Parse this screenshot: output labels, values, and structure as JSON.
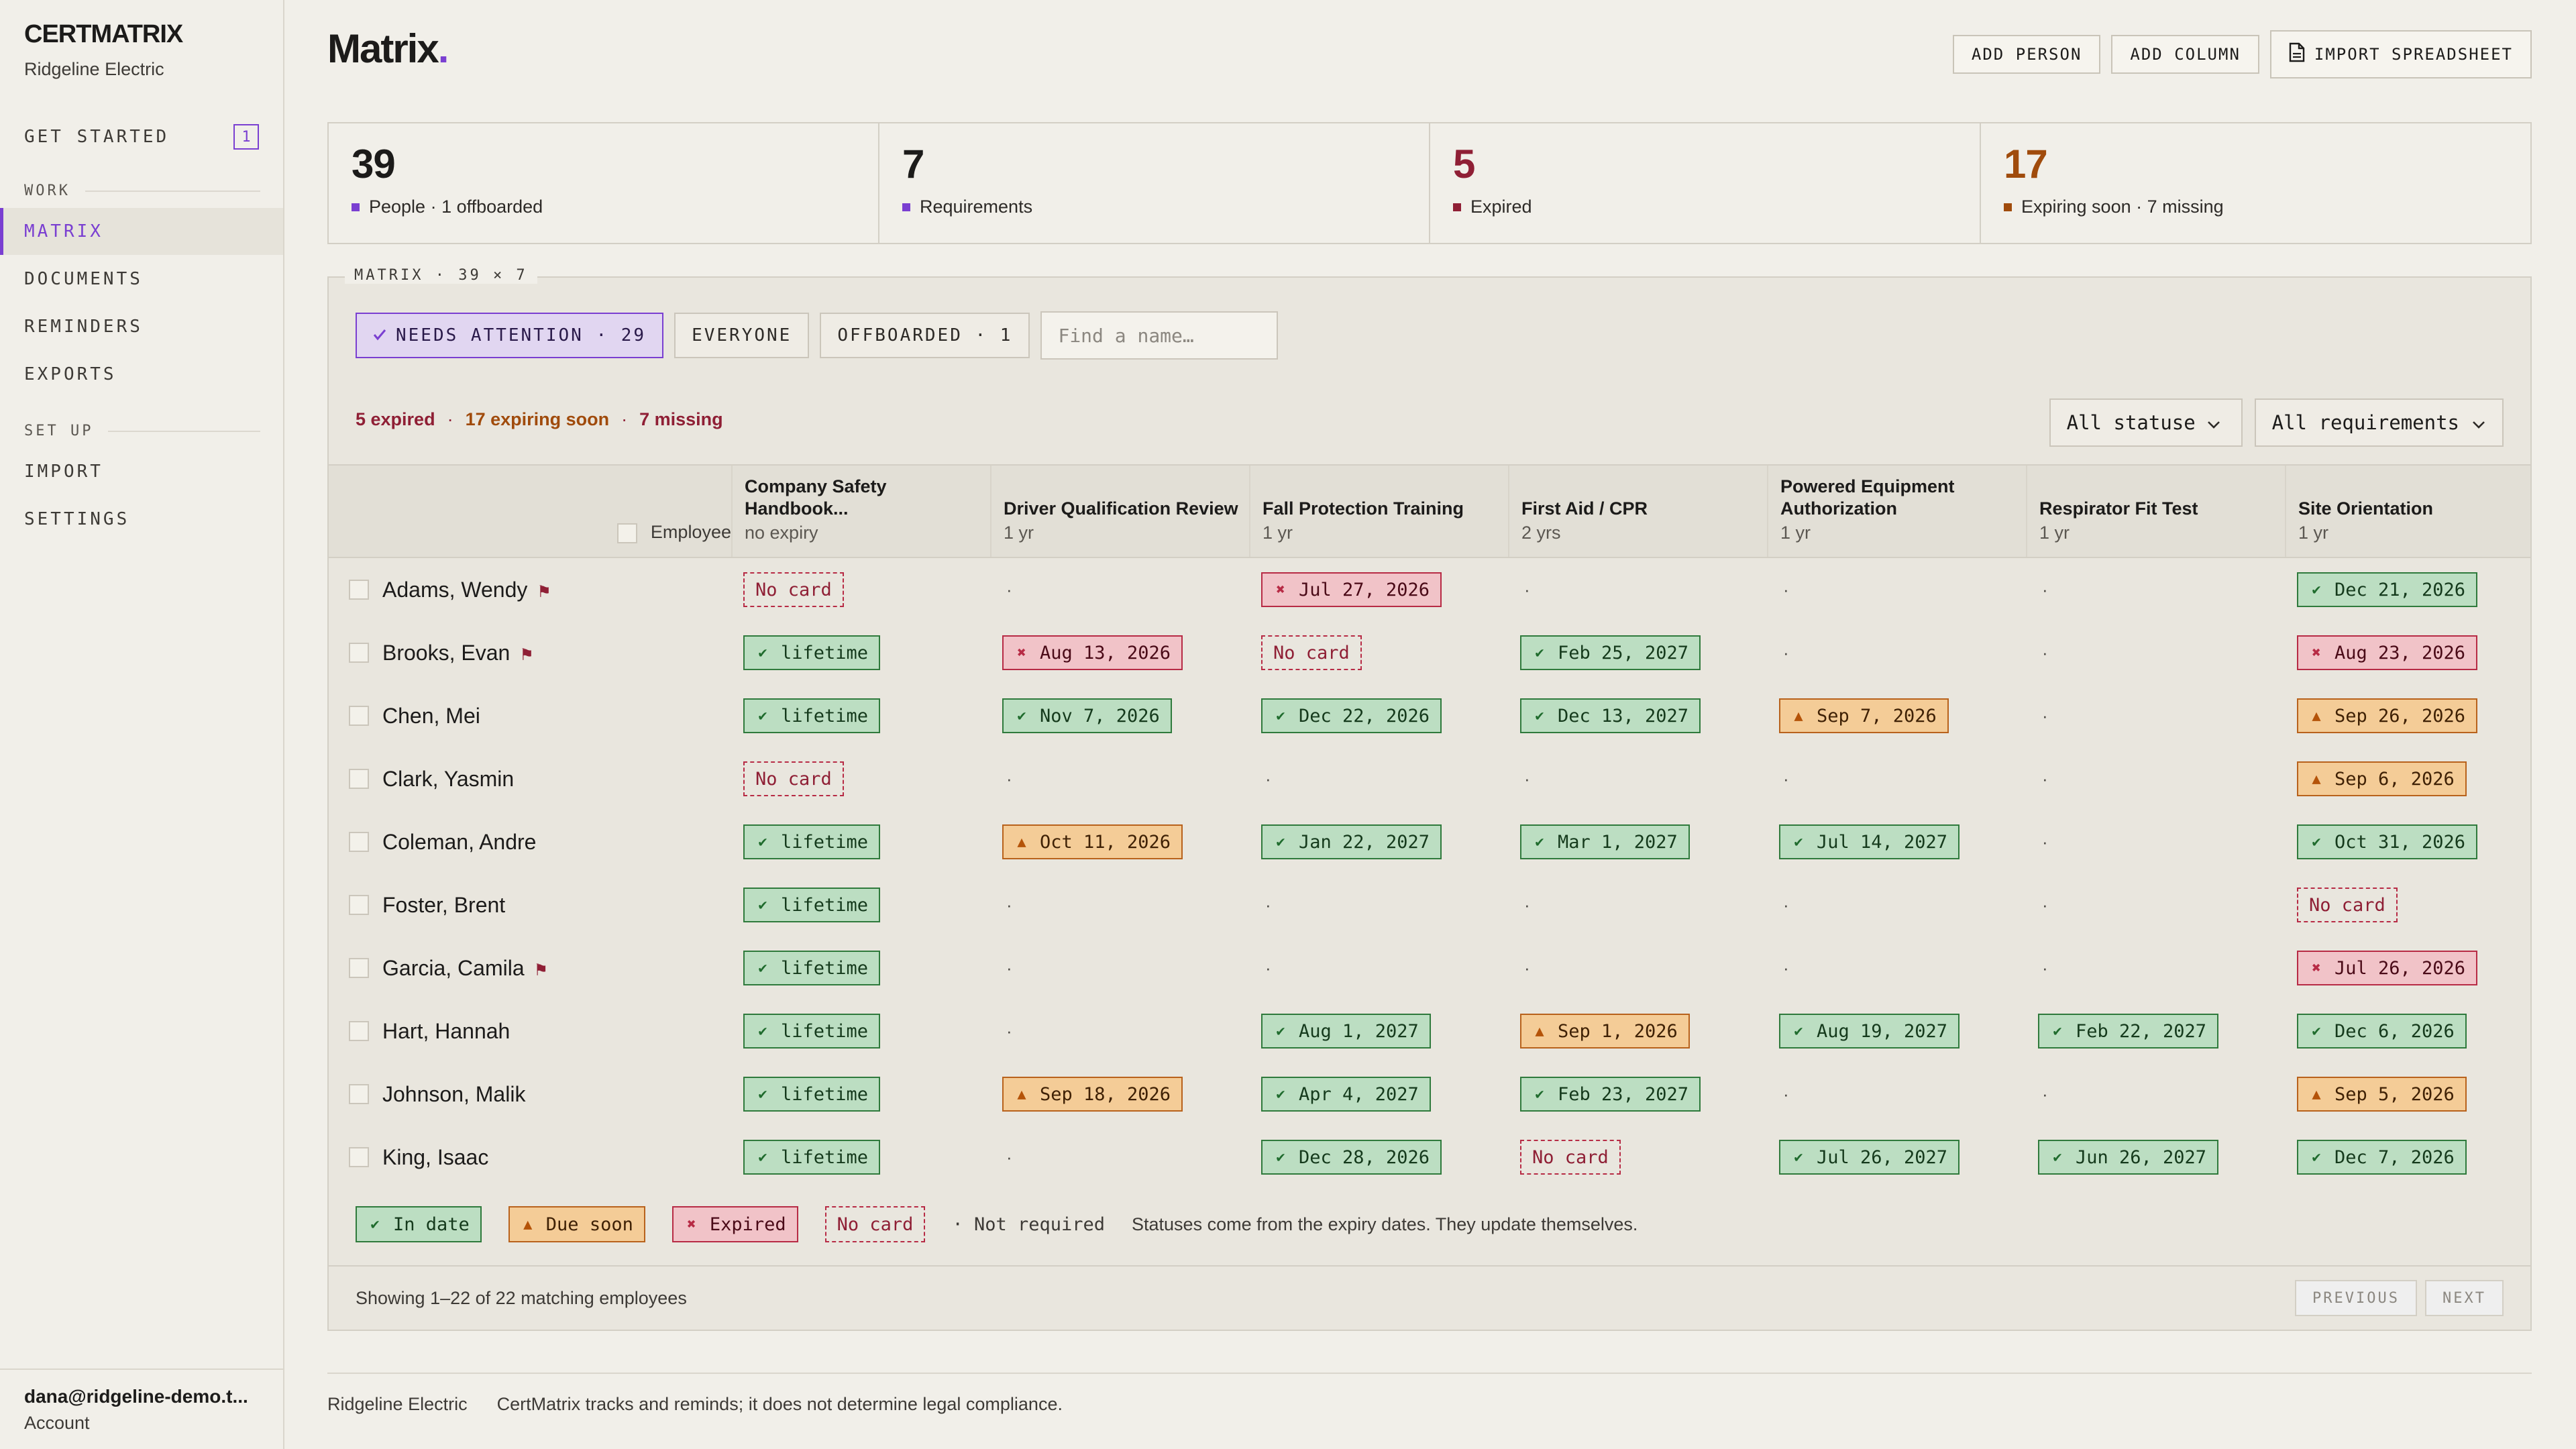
{
  "app": {
    "brand": "CERTMATRIX",
    "org": "Ridgeline Electric"
  },
  "sidebar": {
    "get_started": {
      "label": "GET STARTED",
      "count": "1"
    },
    "work_label": "WORK",
    "work_items": [
      "MATRIX",
      "DOCUMENTS",
      "REMINDERS",
      "EXPORTS"
    ],
    "setup_label": "SET UP",
    "setup_items": [
      "IMPORT",
      "SETTINGS"
    ],
    "account": {
      "email": "dana@ridgeline-demo.t...",
      "link": "Account"
    }
  },
  "header": {
    "title": "Matrix",
    "title_dot": ".",
    "buttons": {
      "add_person": "ADD PERSON",
      "add_column": "ADD COLUMN",
      "import": "IMPORT SPREADSHEET"
    }
  },
  "stats": [
    {
      "value": "39",
      "label": "People · 1 offboarded",
      "color": "#1c1b1a",
      "marker": "#7a3fd1"
    },
    {
      "value": "7",
      "label": "Requirements",
      "color": "#1c1b1a",
      "marker": "#7a3fd1"
    },
    {
      "value": "5",
      "label": "Expired",
      "color": "#8f1f35",
      "marker": "#8f1f35"
    },
    {
      "value": "17",
      "label": "Expiring soon · 7 missing",
      "color": "#a04b0c",
      "marker": "#a04b0c"
    }
  ],
  "matrix": {
    "legend": "MATRIX · 39 × 7",
    "filters": {
      "needs_attention": "NEEDS ATTENTION · 29",
      "everyone": "EVERYONE",
      "offboarded": "OFFBOARDED · 1",
      "search_placeholder": "Find a name…"
    },
    "summary": {
      "expired": "5 expired",
      "soon": "17 expiring soon",
      "missing": "7 missing",
      "sep": "·"
    },
    "dropdowns": {
      "status": "All statuses",
      "requirements": "All requirements"
    },
    "employee_header": "Employee",
    "columns": [
      {
        "name": "Company Safety Handbook...",
        "sub": "no expiry"
      },
      {
        "name": "Driver Qualification Review",
        "sub": "1 yr"
      },
      {
        "name": "Fall Protection Training",
        "sub": "1 yr"
      },
      {
        "name": "First Aid / CPR",
        "sub": "2 yrs"
      },
      {
        "name": "Powered Equipment Authorization",
        "sub": "1 yr"
      },
      {
        "name": "Respirator Fit Test",
        "sub": "1 yr"
      },
      {
        "name": "Site Orientation",
        "sub": "1 yr"
      }
    ],
    "rows": [
      {
        "name": "Adams, Wendy",
        "flag": true,
        "cells": [
          {
            "s": "none",
            "t": "No card"
          },
          {
            "s": "nr",
            "t": "·"
          },
          {
            "s": "exp",
            "t": "Jul 27, 2026"
          },
          {
            "s": "nr",
            "t": "·"
          },
          {
            "s": "nr",
            "t": "·"
          },
          {
            "s": "nr",
            "t": "·"
          },
          {
            "s": "ok",
            "t": "Dec 21, 2026"
          }
        ]
      },
      {
        "name": "Brooks, Evan",
        "flag": true,
        "cells": [
          {
            "s": "ok",
            "t": "lifetime"
          },
          {
            "s": "exp",
            "t": "Aug 13, 2026"
          },
          {
            "s": "none",
            "t": "No card"
          },
          {
            "s": "ok",
            "t": "Feb 25, 2027"
          },
          {
            "s": "nr",
            "t": "·"
          },
          {
            "s": "nr",
            "t": "·"
          },
          {
            "s": "exp",
            "t": "Aug 23, 2026"
          }
        ]
      },
      {
        "name": "Chen, Mei",
        "flag": false,
        "cells": [
          {
            "s": "ok",
            "t": "lifetime"
          },
          {
            "s": "ok",
            "t": "Nov 7, 2026"
          },
          {
            "s": "ok",
            "t": "Dec 22, 2026"
          },
          {
            "s": "ok",
            "t": "Dec 13, 2027"
          },
          {
            "s": "soon",
            "t": "Sep 7, 2026"
          },
          {
            "s": "nr",
            "t": "·"
          },
          {
            "s": "soon",
            "t": "Sep 26, 2026"
          }
        ]
      },
      {
        "name": "Clark, Yasmin",
        "flag": false,
        "cells": [
          {
            "s": "none",
            "t": "No card"
          },
          {
            "s": "nr",
            "t": "·"
          },
          {
            "s": "nr",
            "t": "·"
          },
          {
            "s": "nr",
            "t": "·"
          },
          {
            "s": "nr",
            "t": "·"
          },
          {
            "s": "nr",
            "t": "·"
          },
          {
            "s": "soon",
            "t": "Sep 6, 2026"
          }
        ]
      },
      {
        "name": "Coleman, Andre",
        "flag": false,
        "cells": [
          {
            "s": "ok",
            "t": "lifetime"
          },
          {
            "s": "soon",
            "t": "Oct 11, 2026"
          },
          {
            "s": "ok",
            "t": "Jan 22, 2027"
          },
          {
            "s": "ok",
            "t": "Mar 1, 2027"
          },
          {
            "s": "ok",
            "t": "Jul 14, 2027"
          },
          {
            "s": "nr",
            "t": "·"
          },
          {
            "s": "ok",
            "t": "Oct 31, 2026"
          }
        ]
      },
      {
        "name": "Foster, Brent",
        "flag": false,
        "cells": [
          {
            "s": "ok",
            "t": "lifetime"
          },
          {
            "s": "nr",
            "t": "·"
          },
          {
            "s": "nr",
            "t": "·"
          },
          {
            "s": "nr",
            "t": "·"
          },
          {
            "s": "nr",
            "t": "·"
          },
          {
            "s": "nr",
            "t": "·"
          },
          {
            "s": "none",
            "t": "No card"
          }
        ]
      },
      {
        "name": "Garcia, Camila",
        "flag": true,
        "cells": [
          {
            "s": "ok",
            "t": "lifetime"
          },
          {
            "s": "nr",
            "t": "·"
          },
          {
            "s": "nr",
            "t": "·"
          },
          {
            "s": "nr",
            "t": "·"
          },
          {
            "s": "nr",
            "t": "·"
          },
          {
            "s": "nr",
            "t": "·"
          },
          {
            "s": "exp",
            "t": "Jul 26, 2026"
          }
        ]
      },
      {
        "name": "Hart, Hannah",
        "flag": false,
        "cells": [
          {
            "s": "ok",
            "t": "lifetime"
          },
          {
            "s": "nr",
            "t": "·"
          },
          {
            "s": "ok",
            "t": "Aug 1, 2027"
          },
          {
            "s": "soon",
            "t": "Sep 1, 2026"
          },
          {
            "s": "ok",
            "t": "Aug 19, 2027"
          },
          {
            "s": "ok",
            "t": "Feb 22, 2027"
          },
          {
            "s": "ok",
            "t": "Dec 6, 2026"
          }
        ]
      },
      {
        "name": "Johnson, Malik",
        "flag": false,
        "cells": [
          {
            "s": "ok",
            "t": "lifetime"
          },
          {
            "s": "soon",
            "t": "Sep 18, 2026"
          },
          {
            "s": "ok",
            "t": "Apr 4, 2027"
          },
          {
            "s": "ok",
            "t": "Feb 23, 2027"
          },
          {
            "s": "nr",
            "t": "·"
          },
          {
            "s": "nr",
            "t": "·"
          },
          {
            "s": "soon",
            "t": "Sep 5, 2026"
          }
        ]
      },
      {
        "name": "King, Isaac",
        "flag": false,
        "cells": [
          {
            "s": "ok",
            "t": "lifetime"
          },
          {
            "s": "nr",
            "t": "·"
          },
          {
            "s": "ok",
            "t": "Dec 28, 2026"
          },
          {
            "s": "none",
            "t": "No card"
          },
          {
            "s": "ok",
            "t": "Jul 26, 2027"
          },
          {
            "s": "ok",
            "t": "Jun 26, 2027"
          },
          {
            "s": "ok",
            "t": "Dec 7, 2026"
          }
        ]
      }
    ],
    "legend_items": {
      "ok": "In date",
      "soon": "Due soon",
      "exp": "Expired",
      "none": "No card",
      "nr": "· Not required"
    },
    "legend_note": "Statuses come from the expiry dates. They update themselves.",
    "showing": "Showing 1–22 of 22 matching employees",
    "pager": {
      "previous": "PREVIOUS",
      "next": "NEXT"
    }
  },
  "footer": {
    "org": "Ridgeline Electric",
    "note": "CertMatrix tracks and reminds; it does not determine legal compliance."
  },
  "icons": {
    "ok": "check-icon",
    "soon": "warning-triangle-icon",
    "exp": "x-icon",
    "flag": "flag-icon",
    "chevron": "chevron-down-icon",
    "doc": "document-icon"
  },
  "colors": {
    "accent": "#7a3fd1",
    "expired": "#8f1f35",
    "soon": "#a04b0c",
    "ok": "#2f7a3c"
  }
}
